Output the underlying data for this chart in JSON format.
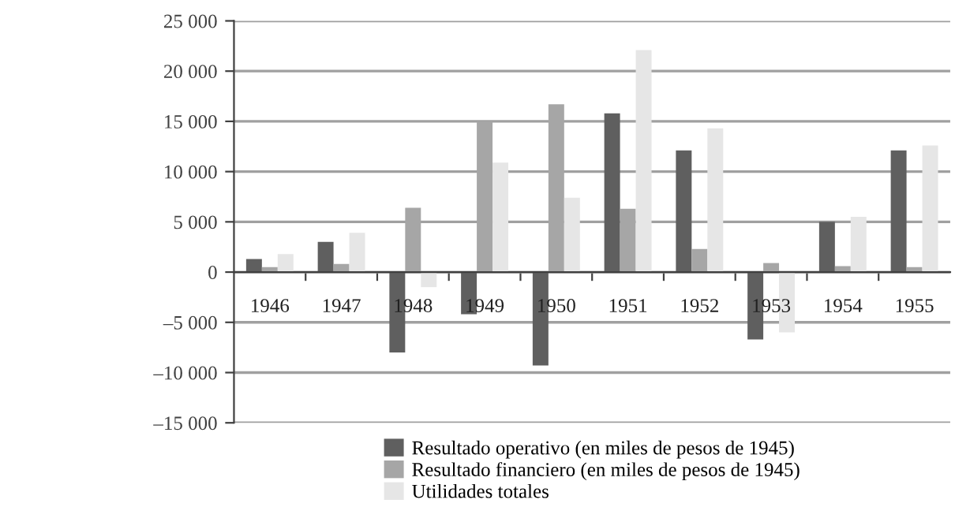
{
  "chart_data": {
    "type": "bar",
    "categories": [
      "1946",
      "1947",
      "1948",
      "1949",
      "1950",
      "1951",
      "1952",
      "1953",
      "1954",
      "1955"
    ],
    "series": [
      {
        "name": "Resultado operativo (en miles de pesos de 1945)",
        "color": "#5f5f5f",
        "values": [
          1300,
          3000,
          -8000,
          -4200,
          -9300,
          15800,
          12100,
          -6700,
          5000,
          12100
        ]
      },
      {
        "name": "Resultado financiero (en miles de pesos de 1945)",
        "color": "#a6a6a6",
        "values": [
          500,
          800,
          6400,
          15000,
          16700,
          6300,
          2300,
          900,
          600,
          500
        ]
      },
      {
        "name": "Utilidades totales",
        "color": "#e6e6e6",
        "values": [
          1800,
          3900,
          -1500,
          10900,
          7400,
          22100,
          14300,
          -6000,
          5500,
          12600
        ]
      }
    ],
    "ylim": [
      -15000,
      25000
    ],
    "yticks": [
      {
        "value": -15000,
        "label": "–15 000"
      },
      {
        "value": -10000,
        "label": "–10 000"
      },
      {
        "value": -5000,
        "label": "–5 000"
      },
      0,
      {
        "value": 5000,
        "label": "5 000"
      },
      {
        "value": 10000,
        "label": "10 000"
      },
      {
        "value": 15000,
        "label": "15 000"
      },
      {
        "value": 20000,
        "label": "20 000"
      },
      {
        "value": 25000,
        "label": "25 000"
      }
    ],
    "grid": "y",
    "legend": "bottom"
  }
}
